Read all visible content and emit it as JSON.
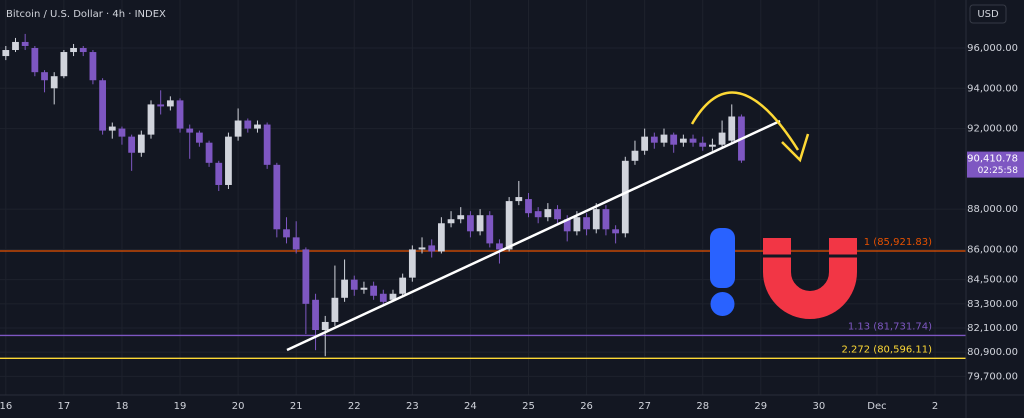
{
  "chart_data": {
    "type": "candlestick",
    "title": "Bitcoin / U.S. Dollar · 4h · INDEX",
    "currency": "USD",
    "up_color": "#d1d4dc",
    "down_color": "#7e57c2",
    "open": [
      95600,
      95900,
      96300,
      96000,
      94800,
      94000,
      94600,
      95800,
      96000,
      95800,
      94400,
      91900,
      92000,
      91600,
      90800,
      91700,
      93200,
      93100,
      93400,
      92000,
      91800,
      91300,
      90300,
      89200,
      91600,
      92400,
      92000,
      92200,
      90200,
      87000,
      86600,
      86000,
      83500,
      82000,
      82400,
      83600,
      84500,
      84000,
      84200,
      83800,
      83500,
      83800,
      84600,
      86000,
      86200,
      85900,
      87300,
      87500,
      87700,
      86900,
      87700,
      86300,
      86000,
      88400,
      88500,
      87900,
      87600,
      88000,
      87500,
      86900,
      87600,
      87000,
      88000,
      87000,
      86800,
      90400,
      90900,
      91600,
      91300,
      91700,
      91300,
      91500,
      91300,
      91100,
      91200,
      91400,
      92600
    ],
    "high": [
      96100,
      96500,
      96700,
      96100,
      94900,
      94800,
      95900,
      96200,
      96100,
      95900,
      94500,
      92300,
      92100,
      91700,
      91900,
      93400,
      93900,
      93600,
      93500,
      92200,
      91900,
      91400,
      90400,
      91800,
      93000,
      92500,
      92400,
      92300,
      90300,
      87600,
      87400,
      86100,
      83800,
      82700,
      85200,
      85500,
      84700,
      84400,
      84400,
      84000,
      84000,
      84800,
      86200,
      86600,
      86500,
      87600,
      87900,
      88100,
      87900,
      88000,
      87900,
      86500,
      88600,
      89400,
      88800,
      88100,
      88300,
      88200,
      87700,
      87900,
      87800,
      88300,
      88200,
      87200,
      90600,
      91400,
      92000,
      91800,
      92000,
      91800,
      91700,
      91700,
      91600,
      91500,
      92400,
      93200,
      92700
    ],
    "low": [
      95400,
      95800,
      95900,
      94600,
      93800,
      93200,
      94500,
      95600,
      95600,
      94200,
      91700,
      91500,
      91200,
      89900,
      90600,
      91500,
      92700,
      92900,
      91800,
      90500,
      91100,
      90100,
      88900,
      89000,
      91400,
      91800,
      91800,
      90000,
      86600,
      86300,
      85800,
      81800,
      81000,
      80700,
      82200,
      83400,
      83700,
      83800,
      83500,
      83200,
      83400,
      83700,
      84400,
      85800,
      85600,
      85800,
      87100,
      87300,
      86600,
      86700,
      86100,
      85300,
      85900,
      88200,
      87600,
      87300,
      87400,
      87200,
      86400,
      86700,
      86700,
      86800,
      86700,
      86300,
      86600,
      90200,
      90700,
      91000,
      91100,
      90800,
      91100,
      91100,
      90900,
      90900,
      91100,
      91300,
      90300
    ],
    "close": [
      95900,
      96300,
      96100,
      94800,
      94400,
      94600,
      95800,
      96000,
      95800,
      94400,
      91900,
      92100,
      91600,
      90800,
      91700,
      93200,
      93100,
      93400,
      92000,
      91800,
      91300,
      90300,
      89200,
      91600,
      92400,
      92000,
      92200,
      90200,
      87000,
      86600,
      86000,
      83300,
      82000,
      82400,
      83600,
      84500,
      84000,
      84100,
      83700,
      83400,
      83800,
      84600,
      86000,
      86100,
      85900,
      87300,
      87500,
      87700,
      86900,
      87700,
      86300,
      86000,
      88400,
      88600,
      87800,
      87600,
      88000,
      87500,
      86900,
      87600,
      87000,
      88000,
      87000,
      86800,
      90400,
      90900,
      91600,
      91300,
      91700,
      91200,
      91500,
      91300,
      91100,
      91200,
      91800,
      92600,
      90410.78
    ],
    "xlim": [
      -0.6,
      99.2
    ],
    "xticks": [
      {
        "value": 0,
        "label": "16"
      },
      {
        "value": 6,
        "label": "17"
      },
      {
        "value": 12,
        "label": "18"
      },
      {
        "value": 18,
        "label": "19"
      },
      {
        "value": 24,
        "label": "20"
      },
      {
        "value": 30,
        "label": "21"
      },
      {
        "value": 36,
        "label": "22"
      },
      {
        "value": 42,
        "label": "23"
      },
      {
        "value": 48,
        "label": "24"
      },
      {
        "value": 54,
        "label": "25"
      },
      {
        "value": 60,
        "label": "26"
      },
      {
        "value": 66,
        "label": "27"
      },
      {
        "value": 72,
        "label": "28"
      },
      {
        "value": 78,
        "label": "29"
      },
      {
        "value": 84,
        "label": "30"
      },
      {
        "value": 90,
        "label": "Dec"
      },
      {
        "value": 96,
        "label": "2"
      }
    ],
    "ylim": [
      78774,
      98383
    ],
    "yticks": [
      {
        "value": 96000,
        "label": "96,000.00"
      },
      {
        "value": 94000,
        "label": "94,000.00"
      },
      {
        "value": 92000,
        "label": "92,000.00"
      },
      {
        "value": 88000,
        "label": "88,000.00"
      },
      {
        "value": 86000,
        "label": "86,000.00"
      },
      {
        "value": 84500,
        "label": "84,500.00"
      },
      {
        "value": 83300,
        "label": "83,300.00"
      },
      {
        "value": 82100,
        "label": "82,100.00"
      },
      {
        "value": 80900,
        "label": "80,900.00"
      },
      {
        "value": 79700,
        "label": "79,700.00"
      }
    ],
    "grid": true,
    "levels": [
      {
        "value": 85921.83,
        "label": "1 (85,921.83)",
        "color": "#e65100"
      },
      {
        "value": 81731.74,
        "label": "1.13 (81,731.74)",
        "color": "#7e57c2"
      },
      {
        "value": 80596.11,
        "label": "2.272 (80,596.11)",
        "color": "#fdd835"
      }
    ],
    "last_price": {
      "value": 90410.78,
      "label": "90,410.78",
      "countdown": "02:25:58",
      "color": "#7e57c2"
    }
  }
}
